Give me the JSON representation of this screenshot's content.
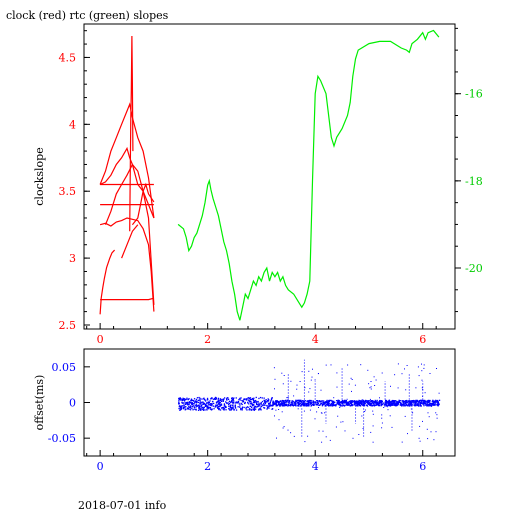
{
  "chart_data": [
    {
      "type": "line",
      "title": "clock (red) rtc (green) slopes",
      "ylabel": "clockslope",
      "xlim": [
        -0.3,
        6.6
      ],
      "xticks": [
        0,
        2,
        4,
        6
      ],
      "ylim": [
        2.47,
        4.75
      ],
      "yticks": [
        2.5,
        3,
        3.5,
        4,
        4.5
      ],
      "y2lim": [
        -21.4,
        -14.4
      ],
      "y2ticks": [
        -16,
        -18,
        -20
      ],
      "colors": {
        "clock": "#ff0000",
        "rtc": "#00ee00"
      },
      "series": [
        {
          "name": "clock",
          "axis": "left",
          "segments": [
            [
              [
                0.0,
                2.58
              ],
              [
                0.02,
                2.7
              ],
              [
                0.05,
                2.78
              ],
              [
                0.08,
                2.85
              ],
              [
                0.12,
                2.93
              ],
              [
                0.18,
                3.0
              ],
              [
                0.22,
                3.04
              ],
              [
                0.27,
                3.06
              ]
            ],
            [
              [
                0.0,
                2.69
              ],
              [
                0.5,
                2.69
              ],
              [
                0.9,
                2.69
              ],
              [
                1.0,
                2.7
              ]
            ],
            [
              [
                0.0,
                3.25
              ],
              [
                0.1,
                3.26
              ],
              [
                0.2,
                3.24
              ],
              [
                0.3,
                3.27
              ],
              [
                0.4,
                3.28
              ],
              [
                0.5,
                3.3
              ],
              [
                0.6,
                3.29
              ],
              [
                0.7,
                3.28
              ],
              [
                0.8,
                3.22
              ],
              [
                0.9,
                3.1
              ],
              [
                0.95,
                2.9
              ],
              [
                1.0,
                2.6
              ]
            ],
            [
              [
                0.0,
                3.4
              ],
              [
                0.3,
                3.4
              ],
              [
                0.6,
                3.4
              ],
              [
                1.0,
                3.4
              ]
            ],
            [
              [
                0.0,
                3.55
              ],
              [
                0.1,
                3.57
              ],
              [
                0.2,
                3.62
              ],
              [
                0.3,
                3.7
              ],
              [
                0.4,
                3.75
              ],
              [
                0.5,
                3.82
              ],
              [
                0.55,
                3.75
              ],
              [
                0.6,
                3.7
              ],
              [
                0.7,
                3.55
              ],
              [
                0.8,
                3.5
              ],
              [
                0.9,
                3.4
              ],
              [
                1.0,
                3.3
              ]
            ],
            [
              [
                0.0,
                3.55
              ],
              [
                0.5,
                3.55
              ],
              [
                1.0,
                3.55
              ]
            ],
            [
              [
                0.0,
                3.55
              ],
              [
                0.1,
                3.65
              ],
              [
                0.2,
                3.8
              ],
              [
                0.3,
                3.9
              ],
              [
                0.4,
                4.0
              ],
              [
                0.5,
                4.1
              ],
              [
                0.55,
                4.15
              ],
              [
                0.6,
                4.05
              ],
              [
                0.7,
                3.9
              ],
              [
                0.8,
                3.8
              ],
              [
                0.9,
                3.6
              ],
              [
                1.0,
                3.3
              ]
            ],
            [
              [
                0.1,
                3.25
              ],
              [
                0.2,
                3.35
              ],
              [
                0.3,
                3.48
              ],
              [
                0.4,
                3.55
              ],
              [
                0.5,
                3.62
              ],
              [
                0.6,
                3.7
              ],
              [
                0.7,
                3.65
              ],
              [
                0.8,
                3.5
              ],
              [
                0.9,
                3.3
              ],
              [
                1.0,
                2.65
              ]
            ],
            [
              [
                0.55,
                3.2
              ],
              [
                0.56,
                3.6
              ],
              [
                0.57,
                4.05
              ],
              [
                0.58,
                4.25
              ],
              [
                0.59,
                4.66
              ],
              [
                0.6,
                4.3
              ],
              [
                0.61,
                3.8
              ]
            ],
            [
              [
                0.6,
                3.25
              ],
              [
                0.7,
                3.3
              ],
              [
                0.75,
                3.4
              ],
              [
                0.8,
                3.5
              ],
              [
                0.85,
                3.55
              ],
              [
                0.9,
                3.48
              ],
              [
                1.0,
                3.42
              ]
            ],
            [
              [
                0.4,
                3.0
              ],
              [
                0.5,
                3.1
              ],
              [
                0.6,
                3.2
              ],
              [
                0.7,
                3.25
              ]
            ]
          ]
        },
        {
          "name": "rtc",
          "axis": "right",
          "points": [
            [
              1.45,
              -19.0
            ],
            [
              1.55,
              -19.1
            ],
            [
              1.6,
              -19.3
            ],
            [
              1.65,
              -19.6
            ],
            [
              1.7,
              -19.5
            ],
            [
              1.75,
              -19.3
            ],
            [
              1.8,
              -19.2
            ],
            [
              1.85,
              -19.0
            ],
            [
              1.9,
              -18.8
            ],
            [
              1.95,
              -18.5
            ],
            [
              2.0,
              -18.1
            ],
            [
              2.03,
              -18.0
            ],
            [
              2.06,
              -18.2
            ],
            [
              2.1,
              -18.4
            ],
            [
              2.15,
              -18.6
            ],
            [
              2.2,
              -18.8
            ],
            [
              2.25,
              -19.1
            ],
            [
              2.3,
              -19.4
            ],
            [
              2.35,
              -19.6
            ],
            [
              2.4,
              -19.9
            ],
            [
              2.45,
              -20.3
            ],
            [
              2.5,
              -20.6
            ],
            [
              2.55,
              -21.0
            ],
            [
              2.6,
              -21.2
            ],
            [
              2.65,
              -20.9
            ],
            [
              2.7,
              -20.6
            ],
            [
              2.75,
              -20.7
            ],
            [
              2.8,
              -20.5
            ],
            [
              2.85,
              -20.3
            ],
            [
              2.9,
              -20.4
            ],
            [
              2.95,
              -20.2
            ],
            [
              3.0,
              -20.3
            ],
            [
              3.05,
              -20.1
            ],
            [
              3.1,
              -20.0
            ],
            [
              3.15,
              -20.3
            ],
            [
              3.2,
              -20.1
            ],
            [
              3.25,
              -20.2
            ],
            [
              3.3,
              -20.1
            ],
            [
              3.35,
              -20.3
            ],
            [
              3.4,
              -20.2
            ],
            [
              3.45,
              -20.4
            ],
            [
              3.5,
              -20.5
            ],
            [
              3.6,
              -20.6
            ],
            [
              3.7,
              -20.8
            ],
            [
              3.75,
              -20.9
            ],
            [
              3.8,
              -20.8
            ],
            [
              3.85,
              -20.6
            ],
            [
              3.9,
              -20.3
            ],
            [
              3.95,
              -18.0
            ],
            [
              4.0,
              -16.0
            ],
            [
              4.05,
              -15.6
            ],
            [
              4.1,
              -15.7
            ],
            [
              4.2,
              -16.0
            ],
            [
              4.3,
              -17.0
            ],
            [
              4.35,
              -17.2
            ],
            [
              4.4,
              -17.0
            ],
            [
              4.5,
              -16.8
            ],
            [
              4.6,
              -16.5
            ],
            [
              4.65,
              -16.2
            ],
            [
              4.7,
              -15.6
            ],
            [
              4.75,
              -15.2
            ],
            [
              4.8,
              -15.0
            ],
            [
              5.0,
              -14.85
            ],
            [
              5.2,
              -14.8
            ],
            [
              5.4,
              -14.8
            ],
            [
              5.6,
              -14.95
            ],
            [
              5.7,
              -15.0
            ],
            [
              5.75,
              -15.05
            ],
            [
              5.8,
              -14.85
            ],
            [
              5.9,
              -14.75
            ],
            [
              6.0,
              -14.6
            ],
            [
              6.05,
              -14.75
            ],
            [
              6.1,
              -14.6
            ],
            [
              6.2,
              -14.55
            ],
            [
              6.3,
              -14.7
            ]
          ]
        }
      ]
    },
    {
      "type": "scatter",
      "ylabel": "offset(ms)",
      "xlim": [
        -0.3,
        6.6
      ],
      "xticks": [
        0,
        2,
        4,
        6
      ],
      "ylim": [
        -0.075,
        0.075
      ],
      "yticks": [
        0.05,
        0,
        -0.05
      ],
      "color": "#0000ff",
      "series": [
        {
          "name": "offset",
          "x_range": [
            1.45,
            6.3
          ],
          "band_before_3_2": [
            -0.01,
            0.008
          ],
          "band_after_3_2": [
            -0.004,
            0.004
          ]
        }
      ],
      "spikes": [
        [
          3.5,
          0.04
        ],
        [
          3.75,
          -0.05
        ],
        [
          3.8,
          0.06
        ],
        [
          4.0,
          0.03
        ],
        [
          4.2,
          -0.03
        ],
        [
          4.5,
          0.05
        ],
        [
          4.75,
          -0.03
        ],
        [
          4.9,
          -0.05
        ],
        [
          5.3,
          0.03
        ],
        [
          5.75,
          0.04
        ],
        [
          5.8,
          -0.04
        ],
        [
          6.0,
          0.03
        ]
      ]
    }
  ],
  "footer": "2018-07-01 info"
}
